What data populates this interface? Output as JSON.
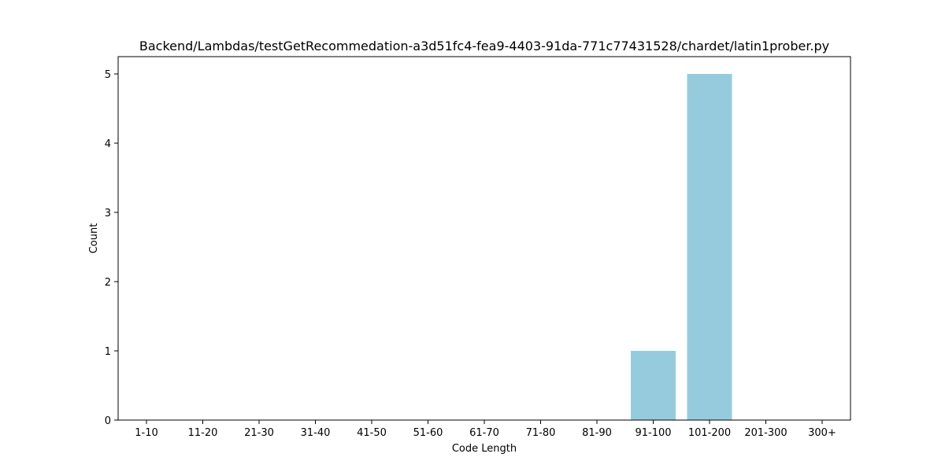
{
  "chart_data": {
    "type": "bar",
    "title": "Backend/Lambdas/testGetRecommedation-a3d51fc4-fea9-4403-91da-771c77431528/chardet/latin1prober.py",
    "xlabel": "Code Length",
    "ylabel": "Count",
    "categories": [
      "1-10",
      "11-20",
      "21-30",
      "31-40",
      "41-50",
      "51-60",
      "61-70",
      "71-80",
      "81-90",
      "91-100",
      "101-200",
      "201-300",
      "300+"
    ],
    "values": [
      0,
      0,
      0,
      0,
      0,
      0,
      0,
      0,
      0,
      1,
      5,
      0,
      0
    ],
    "ylim": [
      0,
      5.25
    ],
    "yticks": [
      0,
      1,
      2,
      3,
      4,
      5
    ],
    "grid": false,
    "bar_color": "#96cbdd"
  }
}
